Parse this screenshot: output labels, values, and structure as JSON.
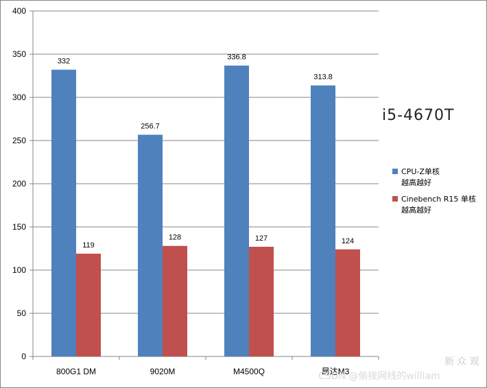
{
  "chart_data": {
    "type": "bar",
    "categories": [
      "800G1 DM",
      "9020M",
      "M4500Q",
      "昂达M3"
    ],
    "series": [
      {
        "name": "CPU-Z单核\n越高越好",
        "values": [
          332,
          256.7,
          336.8,
          313.8
        ],
        "value_labels": [
          "332",
          "256.7",
          "336.8",
          "313.8"
        ],
        "color": "#4f81bd"
      },
      {
        "name": "Cinebench R15 单核\n越高越好",
        "values": [
          119,
          128,
          127,
          124
        ],
        "value_labels": [
          "119",
          "128",
          "127",
          "124"
        ],
        "color": "#c0504d"
      }
    ],
    "ylim": [
      0,
      400
    ],
    "yticks": [
      0,
      50,
      100,
      150,
      200,
      250,
      300,
      350,
      400
    ],
    "title": "",
    "xlabel": "",
    "ylabel": "",
    "grid": true,
    "legend_position": "right",
    "annotation": "i5-4670T"
  },
  "watermark": {
    "line1": "新 众 观",
    "line2": "CSDN @偷拨网线的william"
  }
}
